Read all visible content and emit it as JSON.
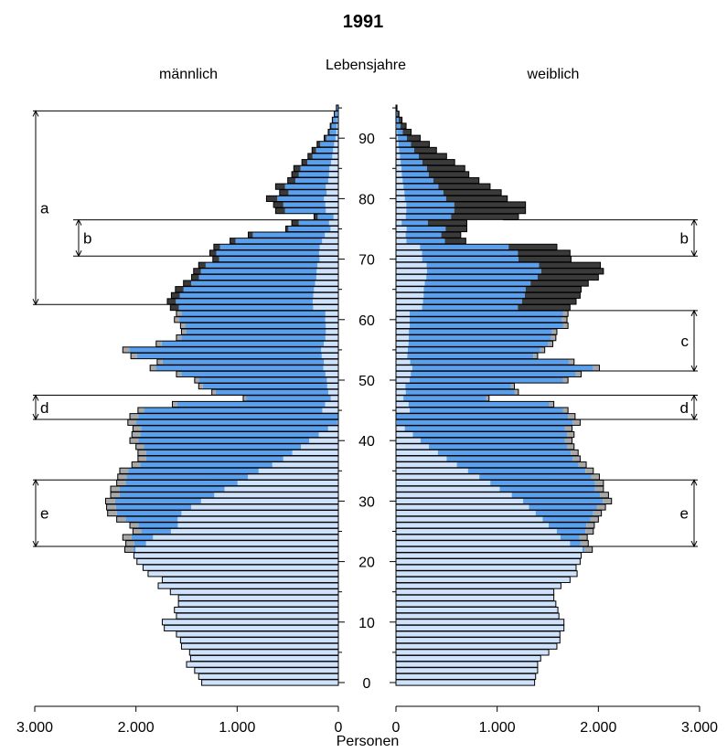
{
  "chart_data": {
    "type": "bar",
    "title": "1991",
    "center_label": "Lebensjahre",
    "left_label": "männlich",
    "right_label": "weiblich",
    "xlabel": "Personen",
    "x_ticks_left": [
      "3.000",
      "2.000",
      "1.000",
      "0"
    ],
    "x_ticks_right": [
      "0",
      "1.000",
      "2.000",
      "3.000"
    ],
    "y_ticks": [
      "0",
      "10",
      "20",
      "30",
      "40",
      "50",
      "60",
      "70",
      "80",
      "90"
    ],
    "xlim": [
      0,
      3000
    ],
    "ylim": [
      0,
      95
    ],
    "colors": {
      "light": "#cfe2fb",
      "blue": "#5aa0ec",
      "gray": "#a9a9a9",
      "dark": "#3a3a3a",
      "outline": "#000000"
    },
    "ages": [
      0,
      1,
      2,
      3,
      4,
      5,
      6,
      7,
      8,
      9,
      10,
      11,
      12,
      13,
      14,
      15,
      16,
      17,
      18,
      19,
      20,
      21,
      22,
      23,
      24,
      25,
      26,
      27,
      28,
      29,
      30,
      31,
      32,
      33,
      34,
      35,
      36,
      37,
      38,
      39,
      40,
      41,
      42,
      43,
      44,
      45,
      46,
      47,
      48,
      49,
      50,
      51,
      52,
      53,
      54,
      55,
      56,
      57,
      58,
      59,
      60,
      61,
      62,
      63,
      64,
      65,
      66,
      67,
      68,
      69,
      70,
      71,
      72,
      73,
      74,
      75,
      76,
      77,
      78,
      79,
      80,
      81,
      82,
      83,
      84,
      85,
      86,
      87,
      88,
      89,
      90,
      91,
      92,
      93,
      94,
      95
    ],
    "male_total": [
      1350,
      1380,
      1420,
      1500,
      1460,
      1470,
      1550,
      1560,
      1600,
      1720,
      1740,
      1600,
      1620,
      1580,
      1580,
      1660,
      1780,
      1740,
      1880,
      1930,
      1990,
      2020,
      2110,
      2100,
      2130,
      2030,
      2060,
      2190,
      2280,
      2290,
      2300,
      2250,
      2250,
      2190,
      2180,
      2160,
      2040,
      1980,
      1980,
      2000,
      2060,
      2040,
      2030,
      2080,
      2060,
      1980,
      1640,
      940,
      1250,
      1380,
      1420,
      1600,
      1860,
      1790,
      2050,
      2130,
      1800,
      1600,
      1550,
      1560,
      1620,
      1600,
      1660,
      1690,
      1650,
      1610,
      1530,
      1450,
      1430,
      1380,
      1240,
      1270,
      1230,
      1070,
      890,
      520,
      460,
      240,
      620,
      640,
      710,
      580,
      620,
      500,
      460,
      440,
      360,
      300,
      260,
      210,
      140,
      100,
      80,
      60,
      40,
      20
    ],
    "male_blue": [
      0,
      0,
      0,
      0,
      0,
      0,
      0,
      0,
      0,
      0,
      0,
      0,
      0,
      0,
      0,
      0,
      0,
      0,
      0,
      0,
      0,
      0,
      0,
      0,
      0,
      0,
      0,
      0,
      0,
      0,
      0,
      0,
      0,
      0,
      0,
      0,
      0,
      0,
      0,
      0,
      0,
      0,
      0,
      0,
      0,
      0,
      0,
      0,
      0,
      0,
      0,
      0,
      0,
      0,
      0,
      0,
      0,
      0,
      0,
      0,
      0,
      0,
      0,
      0,
      0,
      0,
      0,
      0,
      0,
      0,
      0,
      0,
      0,
      0,
      0,
      0,
      0,
      0,
      0,
      0,
      0,
      0,
      0,
      0,
      0,
      0,
      0,
      0,
      0,
      0,
      0,
      0,
      0,
      0,
      0,
      0
    ],
    "female_total": [
      1370,
      1380,
      1400,
      1400,
      1430,
      1510,
      1590,
      1620,
      1620,
      1660,
      1660,
      1610,
      1600,
      1580,
      1560,
      1560,
      1630,
      1720,
      1790,
      1780,
      1820,
      1830,
      1940,
      1900,
      1890,
      1950,
      1960,
      2000,
      2030,
      2070,
      2130,
      2100,
      2050,
      2050,
      2010,
      1950,
      1880,
      1820,
      1800,
      1760,
      1740,
      1760,
      1740,
      1820,
      1770,
      1700,
      1560,
      920,
      1210,
      1170,
      1700,
      1830,
      2010,
      1760,
      1400,
      1470,
      1550,
      1580,
      1590,
      1700,
      1690,
      1700,
      1720,
      1780,
      1820,
      1830,
      1900,
      2000,
      2050,
      2020,
      1730,
      1720,
      1590,
      690,
      640,
      700,
      700,
      1210,
      1280,
      1280,
      1100,
      1040,
      930,
      820,
      720,
      680,
      580,
      500,
      400,
      330,
      240,
      150,
      100,
      60,
      30,
      10
    ],
    "female_blue": [
      0,
      0,
      0,
      0,
      0,
      0,
      0,
      0,
      0,
      0,
      0,
      0,
      0,
      0,
      0,
      0,
      0,
      0,
      0,
      0,
      0,
      0,
      0,
      0,
      0,
      0,
      0,
      0,
      0,
      0,
      0,
      0,
      0,
      0,
      0,
      0,
      0,
      0,
      0,
      0,
      0,
      0,
      0,
      0,
      0,
      0,
      0,
      0,
      0,
      0,
      0,
      0,
      0,
      0,
      0,
      0,
      0,
      0,
      0,
      0,
      0,
      0,
      0,
      0,
      0,
      0,
      0,
      0,
      0,
      0,
      0,
      0,
      0,
      0,
      0,
      0,
      0,
      0,
      0,
      0,
      0,
      0,
      0,
      0,
      0,
      0,
      0,
      0,
      0,
      0,
      0,
      0,
      0,
      0,
      0,
      0
    ],
    "brackets_left": [
      {
        "label": "a",
        "from": 63,
        "to": 94
      },
      {
        "label": "b",
        "from": 71,
        "to": 76
      },
      {
        "label": "d",
        "from": 44,
        "to": 47
      },
      {
        "label": "e",
        "from": 23,
        "to": 33
      }
    ],
    "brackets_right": [
      {
        "label": "b",
        "from": 71,
        "to": 76
      },
      {
        "label": "c",
        "from": 52,
        "to": 61
      },
      {
        "label": "d",
        "from": 44,
        "to": 47
      },
      {
        "label": "e",
        "from": 23,
        "to": 33
      }
    ]
  }
}
